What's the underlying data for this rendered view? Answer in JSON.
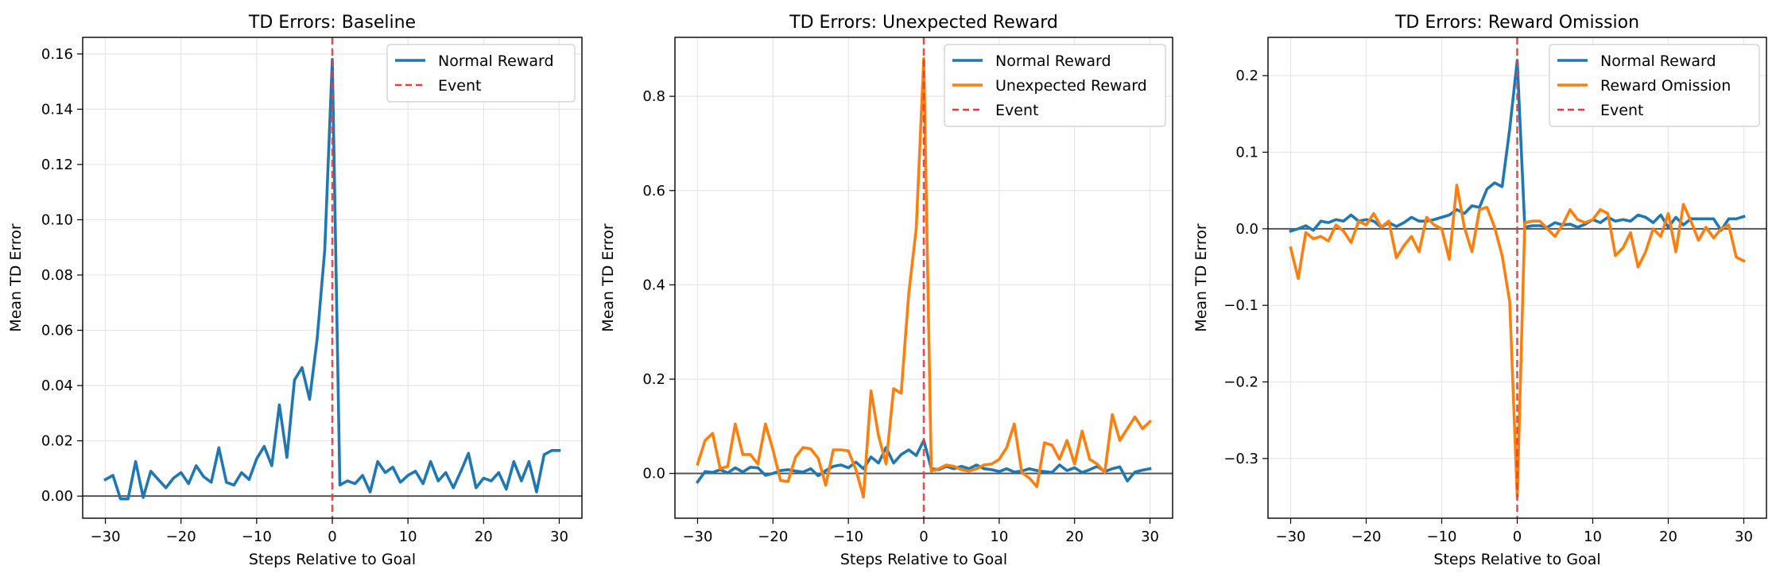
{
  "chart_data": [
    {
      "type": "line",
      "title": "TD Errors: Baseline",
      "xlabel": "Steps Relative to Goal",
      "ylabel": "Mean TD Error",
      "xlim": [
        -33,
        33
      ],
      "ylim": [
        -0.008,
        0.166
      ],
      "xticks": [
        -30,
        -20,
        -10,
        0,
        10,
        20,
        30
      ],
      "xtick_labels": [
        "−30",
        "−20",
        "−10",
        "0",
        "10",
        "20",
        "30"
      ],
      "yticks": [
        0.0,
        0.02,
        0.04,
        0.06,
        0.08,
        0.1,
        0.12,
        0.14,
        0.16
      ],
      "ytick_labels": [
        "0.00",
        "0.02",
        "0.04",
        "0.06",
        "0.08",
        "0.10",
        "0.12",
        "0.14",
        "0.16"
      ],
      "grid": true,
      "legend_position": "top-right",
      "hline": {
        "y": 0,
        "color": "#555555"
      },
      "event_line": {
        "x": 0,
        "label": "Event",
        "color": "#f0393b"
      },
      "x": [
        -30,
        -29,
        -28,
        -27,
        -26,
        -25,
        -24,
        -23,
        -22,
        -21,
        -20,
        -19,
        -18,
        -17,
        -16,
        -15,
        -14,
        -13,
        -12,
        -11,
        -10,
        -9,
        -8,
        -7,
        -6,
        -5,
        -4,
        -3,
        -2,
        -1,
        0,
        1,
        2,
        3,
        4,
        5,
        6,
        7,
        8,
        9,
        10,
        11,
        12,
        13,
        14,
        15,
        16,
        17,
        18,
        19,
        20,
        21,
        22,
        23,
        24,
        25,
        26,
        27,
        28,
        29,
        30
      ],
      "series": [
        {
          "name": "Normal Reward",
          "color": "#1f77b4",
          "values": [
            0.006,
            0.0075,
            -0.001,
            -0.001,
            0.0125,
            -0.0005,
            0.009,
            0.006,
            0.003,
            0.0065,
            0.0085,
            0.0045,
            0.011,
            0.007,
            0.005,
            0.0175,
            0.005,
            0.004,
            0.0085,
            0.006,
            0.0135,
            0.018,
            0.011,
            0.033,
            0.014,
            0.042,
            0.0465,
            0.035,
            0.057,
            0.089,
            0.158,
            0.004,
            0.0055,
            0.0045,
            0.0075,
            0.0015,
            0.0125,
            0.0085,
            0.0105,
            0.005,
            0.0075,
            0.009,
            0.0045,
            0.0125,
            0.0055,
            0.0085,
            0.003,
            0.009,
            0.0155,
            0.003,
            0.0065,
            0.0055,
            0.0085,
            0.0025,
            0.0125,
            0.0055,
            0.0125,
            0.0015,
            0.015,
            0.0165,
            0.0165
          ]
        }
      ]
    },
    {
      "type": "line",
      "title": "TD Errors: Unexpected Reward",
      "xlabel": "Steps Relative to Goal",
      "ylabel": "Mean TD Error",
      "xlim": [
        -33,
        33
      ],
      "ylim": [
        -0.095,
        0.925
      ],
      "xticks": [
        -30,
        -20,
        -10,
        0,
        10,
        20,
        30
      ],
      "xtick_labels": [
        "−30",
        "−20",
        "−10",
        "0",
        "10",
        "20",
        "30"
      ],
      "yticks": [
        0.0,
        0.2,
        0.4,
        0.6,
        0.8
      ],
      "ytick_labels": [
        "0.0",
        "0.2",
        "0.4",
        "0.6",
        "0.8"
      ],
      "grid": true,
      "legend_position": "top-right",
      "hline": {
        "y": 0,
        "color": "#555555"
      },
      "event_line": {
        "x": 0,
        "label": "Event",
        "color": "#f0393b"
      },
      "x": [
        -30,
        -29,
        -28,
        -27,
        -26,
        -25,
        -24,
        -23,
        -22,
        -21,
        -20,
        -19,
        -18,
        -17,
        -16,
        -15,
        -14,
        -13,
        -12,
        -11,
        -10,
        -9,
        -8,
        -7,
        -6,
        -5,
        -4,
        -3,
        -2,
        -1,
        0,
        1,
        2,
        3,
        4,
        5,
        6,
        7,
        8,
        9,
        10,
        11,
        12,
        13,
        14,
        15,
        16,
        17,
        18,
        19,
        20,
        21,
        22,
        23,
        24,
        25,
        26,
        27,
        28,
        29,
        30
      ],
      "series": [
        {
          "name": "Normal Reward",
          "color": "#1f77b4",
          "values": [
            -0.018,
            0.004,
            0.002,
            0.008,
            0.001,
            0.012,
            0.003,
            0.013,
            0.012,
            -0.004,
            0.0,
            0.006,
            0.008,
            0.005,
            0.003,
            0.01,
            -0.005,
            0.006,
            0.015,
            0.018,
            0.012,
            0.024,
            0.01,
            0.035,
            0.022,
            0.055,
            0.022,
            0.04,
            0.05,
            0.038,
            0.07,
            0.01,
            0.008,
            0.015,
            0.01,
            0.015,
            0.01,
            0.018,
            0.01,
            0.008,
            0.004,
            0.01,
            0.003,
            0.005,
            0.01,
            0.006,
            0.004,
            0.002,
            0.018,
            0.006,
            0.012,
            0.002,
            0.008,
            0.015,
            0.004,
            0.01,
            0.014,
            -0.016,
            0.003,
            0.007,
            0.01
          ]
        },
        {
          "name": "Unexpected Reward",
          "color": "#ff7f0e",
          "values": [
            0.02,
            0.07,
            0.085,
            0.01,
            0.015,
            0.105,
            0.04,
            0.04,
            0.02,
            0.105,
            0.05,
            -0.015,
            -0.017,
            0.035,
            0.055,
            0.052,
            0.032,
            -0.025,
            0.05,
            0.05,
            0.048,
            0.008,
            -0.05,
            0.175,
            0.08,
            0.02,
            0.18,
            0.17,
            0.38,
            0.52,
            0.88,
            0.005,
            0.01,
            0.018,
            0.015,
            0.008,
            0.005,
            0.01,
            0.018,
            0.02,
            0.03,
            0.055,
            0.105,
            0.002,
            -0.01,
            -0.028,
            0.065,
            0.06,
            0.03,
            0.07,
            0.02,
            0.09,
            0.03,
            0.02,
            0.002,
            0.125,
            0.07,
            0.095,
            0.12,
            0.095,
            0.11
          ]
        }
      ]
    },
    {
      "type": "line",
      "title": "TD Errors: Reward Omission",
      "xlabel": "Steps Relative to Goal",
      "ylabel": "Mean TD Error",
      "xlim": [
        -33,
        33
      ],
      "ylim": [
        -0.378,
        0.25
      ],
      "xticks": [
        -30,
        -20,
        -10,
        0,
        10,
        20,
        30
      ],
      "xtick_labels": [
        "−30",
        "−20",
        "−10",
        "0",
        "10",
        "20",
        "30"
      ],
      "yticks": [
        -0.3,
        -0.2,
        -0.1,
        0.0,
        0.1,
        0.2
      ],
      "ytick_labels": [
        "−0.3",
        "−0.2",
        "−0.1",
        "0.0",
        "0.1",
        "0.2"
      ],
      "grid": true,
      "legend_position": "top-right",
      "hline": {
        "y": 0,
        "color": "#555555"
      },
      "event_line": {
        "x": 0,
        "label": "Event",
        "color": "#f0393b"
      },
      "x": [
        -30,
        -29,
        -28,
        -27,
        -26,
        -25,
        -24,
        -23,
        -22,
        -21,
        -20,
        -19,
        -18,
        -17,
        -16,
        -15,
        -14,
        -13,
        -12,
        -11,
        -10,
        -9,
        -8,
        -7,
        -6,
        -5,
        -4,
        -3,
        -2,
        -1,
        0,
        1,
        2,
        3,
        4,
        5,
        6,
        7,
        8,
        9,
        10,
        11,
        12,
        13,
        14,
        15,
        16,
        17,
        18,
        19,
        20,
        21,
        22,
        23,
        24,
        25,
        26,
        27,
        28,
        29,
        30
      ],
      "series": [
        {
          "name": "Normal Reward",
          "color": "#1f77b4",
          "values": [
            -0.003,
            0.0,
            0.004,
            -0.002,
            0.01,
            0.008,
            0.012,
            0.01,
            0.018,
            0.01,
            0.012,
            0.01,
            0.002,
            0.008,
            0.003,
            0.008,
            0.015,
            0.01,
            0.01,
            0.012,
            0.015,
            0.018,
            0.025,
            0.02,
            0.03,
            0.028,
            0.052,
            0.06,
            0.055,
            0.13,
            0.22,
            0.002,
            0.004,
            0.004,
            0.002,
            0.008,
            0.005,
            0.006,
            0.002,
            0.006,
            0.012,
            0.008,
            0.015,
            0.01,
            0.012,
            0.01,
            0.018,
            0.015,
            0.008,
            0.018,
            0.002,
            0.015,
            0.005,
            0.013,
            0.013,
            0.013,
            0.013,
            -0.002,
            0.013,
            0.013,
            0.016
          ]
        },
        {
          "name": "Reward Omission",
          "color": "#ff7f0e",
          "values": [
            -0.025,
            -0.065,
            -0.005,
            -0.013,
            -0.01,
            -0.016,
            0.005,
            -0.003,
            -0.018,
            0.01,
            0.005,
            0.02,
            0.002,
            0.01,
            -0.038,
            -0.022,
            -0.01,
            -0.03,
            0.015,
            0.005,
            0.0,
            -0.04,
            0.057,
            0.002,
            -0.03,
            0.025,
            0.028,
            0.002,
            -0.035,
            -0.095,
            -0.35,
            0.008,
            0.01,
            0.01,
            0.0,
            -0.01,
            0.005,
            0.025,
            0.012,
            0.008,
            0.012,
            0.025,
            0.02,
            -0.035,
            -0.025,
            -0.005,
            -0.05,
            -0.03,
            0.0,
            -0.01,
            0.02,
            -0.03,
            0.032,
            0.01,
            -0.015,
            0.002,
            -0.012,
            0.0,
            0.005,
            -0.037,
            -0.042
          ]
        }
      ]
    }
  ]
}
